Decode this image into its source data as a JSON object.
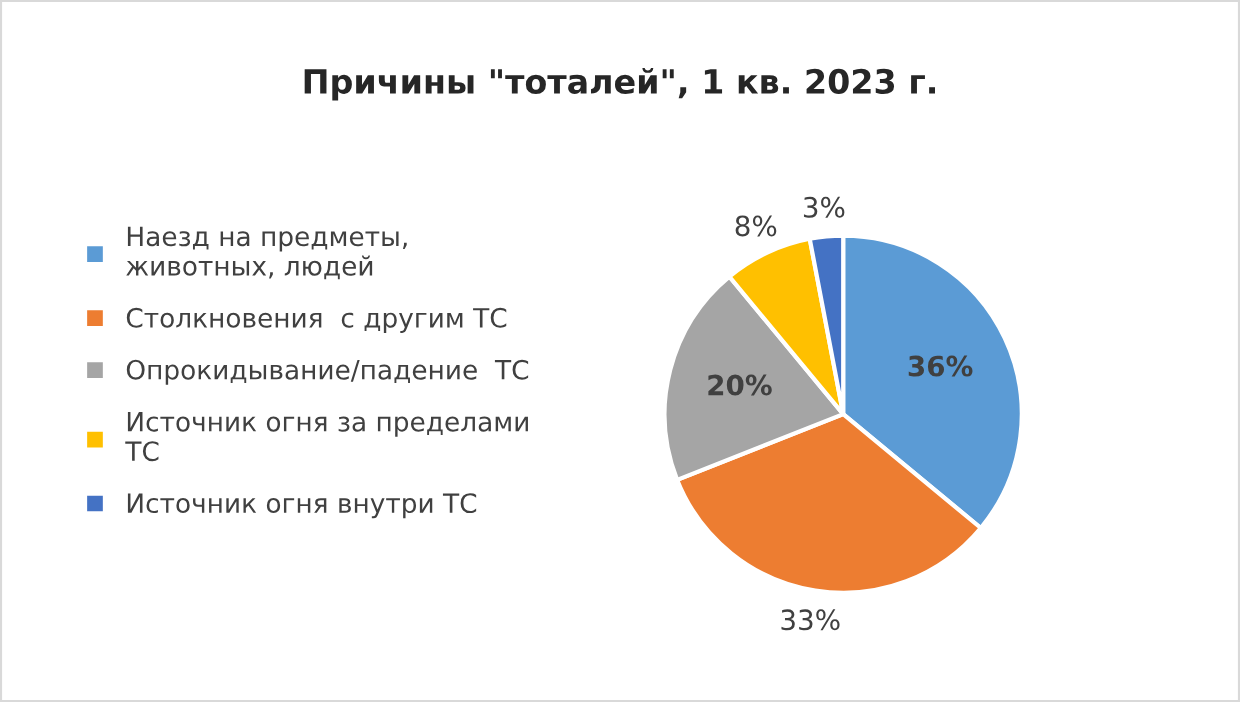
{
  "chart_data": {
    "type": "pie",
    "title": "Причины \"тоталей\", 1 кв. 2023 г.",
    "categories": [
      "Наезд на предметы,\nживотных, людей",
      "Столкновения  с другим ТС",
      "Опрокидывание/падение  ТС",
      "Источник огня за пределами\nТС",
      "Источник огня внутри ТС"
    ],
    "values": [
      36,
      33,
      20,
      8,
      3
    ],
    "colors": [
      "#5b9bd5",
      "#ed7d31",
      "#a5a5a5",
      "#ffc000",
      "#4472c4"
    ],
    "value_labels": [
      "36%",
      "33%",
      "20%",
      "8%",
      "3%"
    ],
    "legend": "left"
  }
}
